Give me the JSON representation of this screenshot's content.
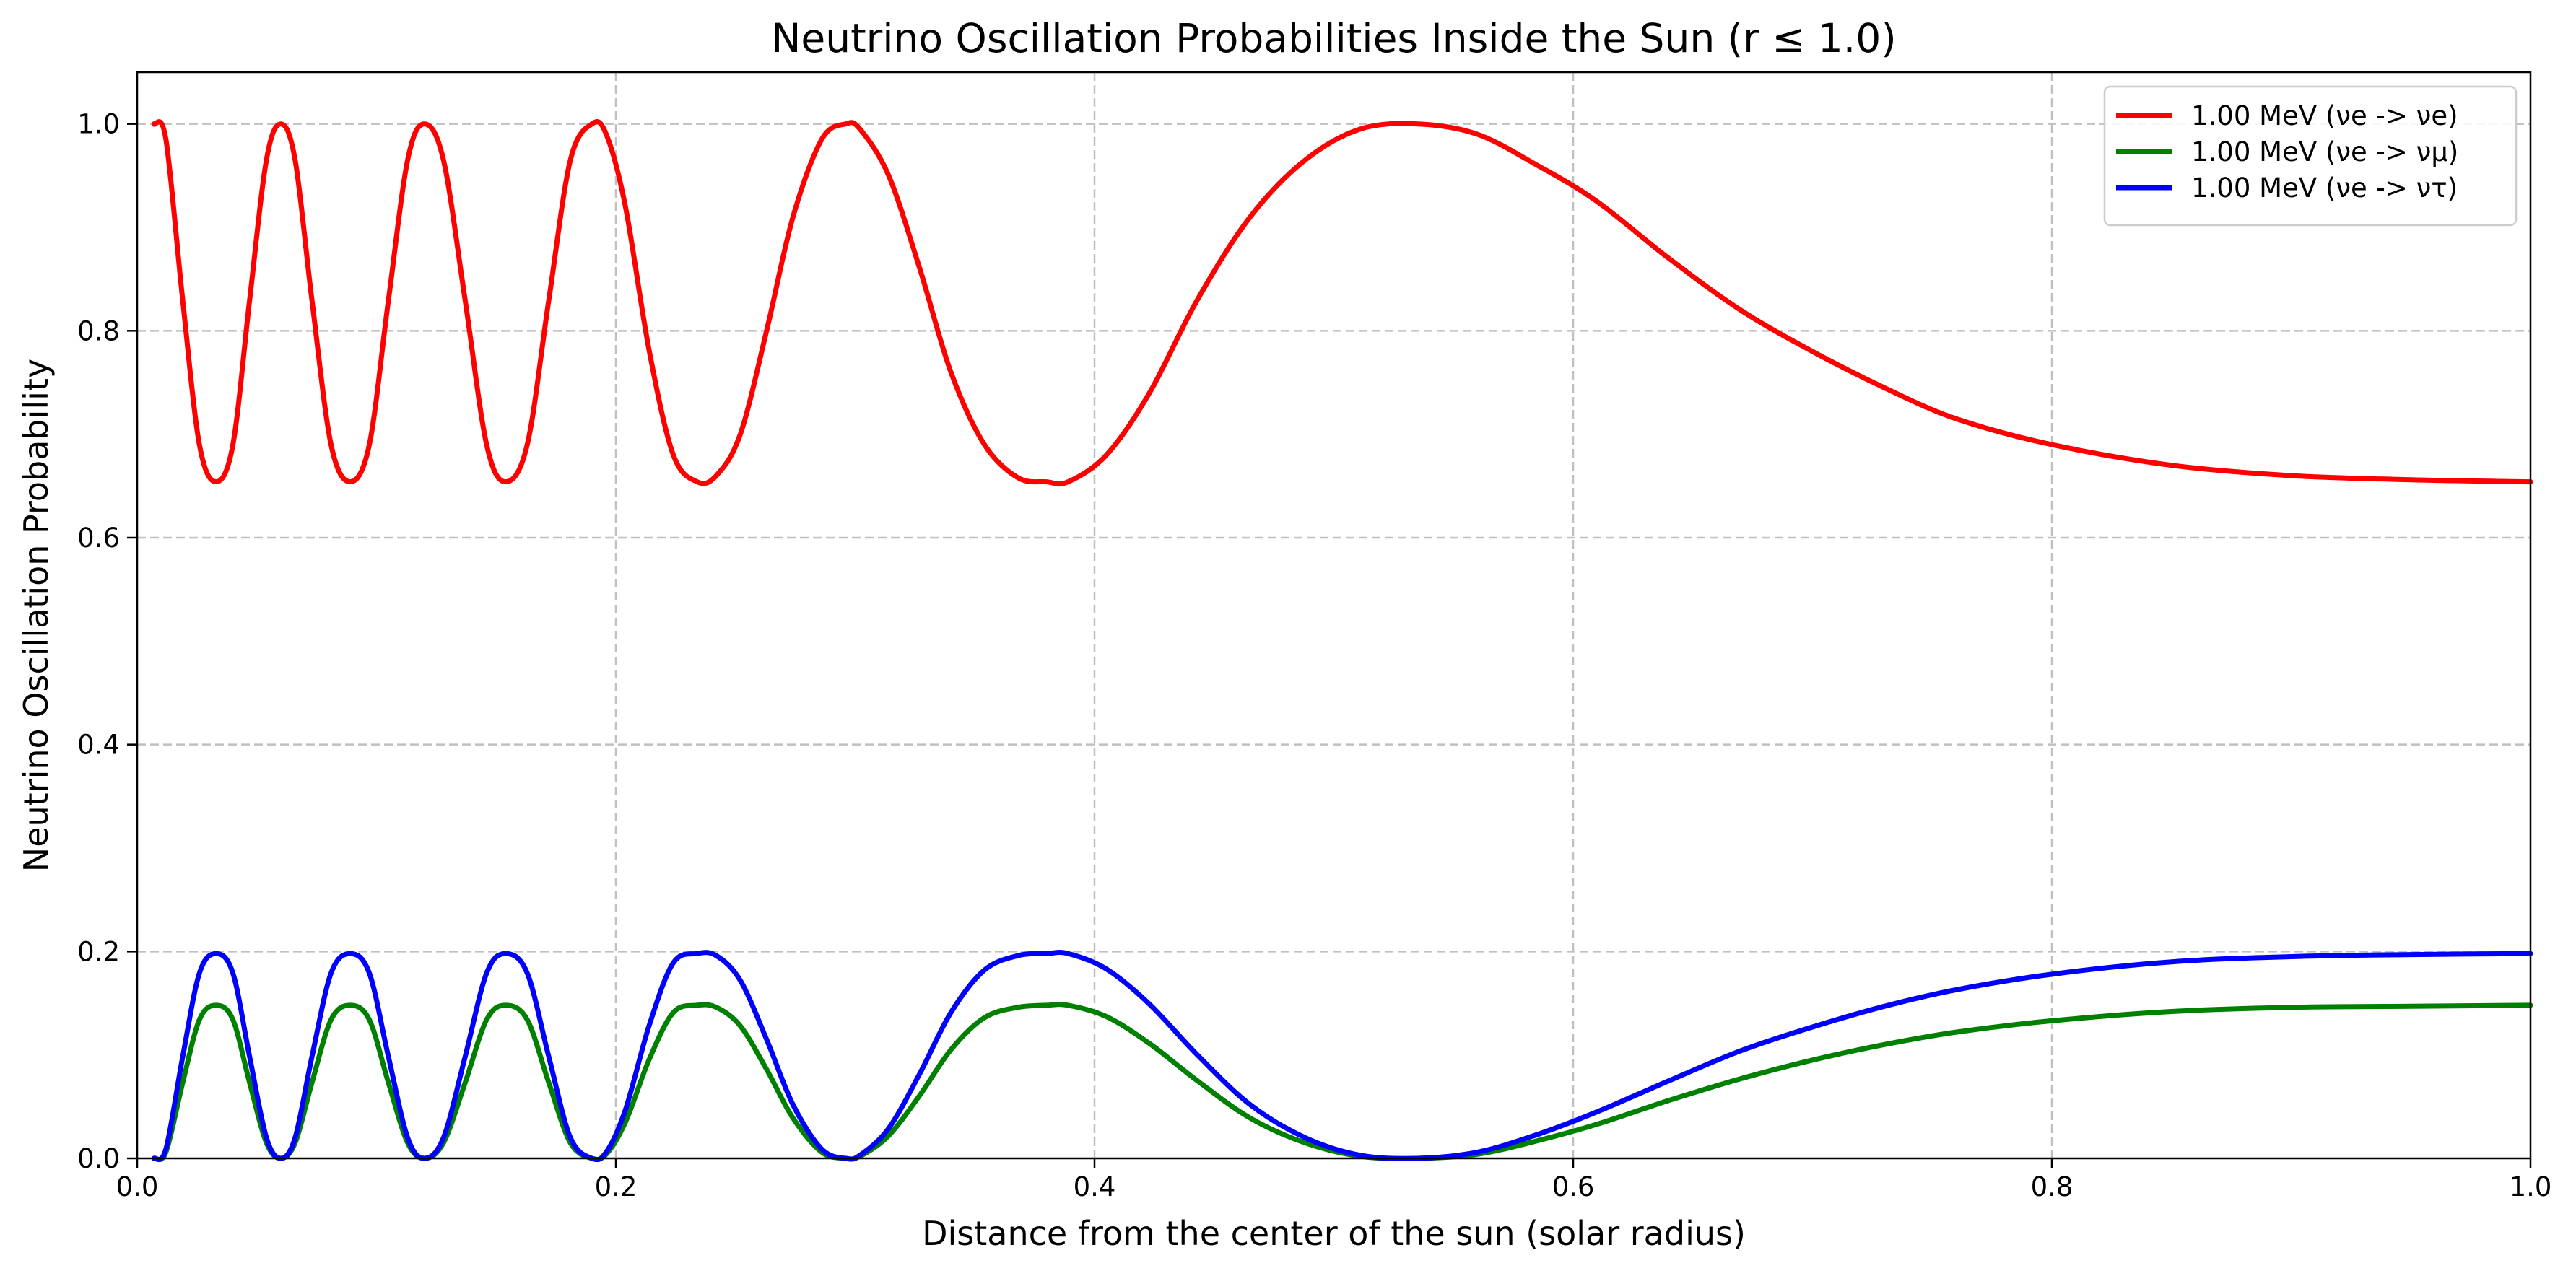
{
  "chart_data": {
    "type": "line",
    "title": "Neutrino Oscillation Probabilities Inside the Sun (r ≤ 1.0)",
    "xlabel": "Distance from the center of the sun (solar radius)",
    "ylabel": "Neutrino Oscillation Probability",
    "xlim": [
      0.0,
      1.0
    ],
    "ylim": [
      0.0,
      1.05
    ],
    "xticks": [
      0.0,
      0.2,
      0.4,
      0.6,
      0.8,
      1.0
    ],
    "xtick_labels": [
      "0.0",
      "0.2",
      "0.4",
      "0.6",
      "0.8",
      "1.0"
    ],
    "yticks": [
      0.0,
      0.2,
      0.4,
      0.6,
      0.8,
      1.0
    ],
    "ytick_labels": [
      "0.0",
      "0.2",
      "0.4",
      "0.6",
      "0.8",
      "1.0"
    ],
    "grid": true,
    "legend_position": "top-right",
    "series": [
      {
        "name": "1.00 MeV (νe -> νe)",
        "color": "#ff0000",
        "x": [
          0.007,
          0.012,
          0.019,
          0.026,
          0.033,
          0.04,
          0.047,
          0.054,
          0.06,
          0.066,
          0.073,
          0.081,
          0.089,
          0.097,
          0.105,
          0.113,
          0.12,
          0.128,
          0.137,
          0.146,
          0.154,
          0.163,
          0.172,
          0.181,
          0.19,
          0.196,
          0.204,
          0.214,
          0.224,
          0.234,
          0.242,
          0.252,
          0.263,
          0.274,
          0.286,
          0.296,
          0.302,
          0.314,
          0.327,
          0.34,
          0.354,
          0.368,
          0.38,
          0.389,
          0.405,
          0.423,
          0.443,
          0.465,
          0.488,
          0.511,
          0.535,
          0.56,
          0.585,
          0.61,
          0.64,
          0.67,
          0.7,
          0.73,
          0.76,
          0.8,
          0.85,
          0.9,
          0.95,
          1.0
        ],
        "y": [
          1.0,
          0.985,
          0.83,
          0.69,
          0.654,
          0.69,
          0.83,
          0.965,
          1.0,
          0.965,
          0.83,
          0.69,
          0.654,
          0.69,
          0.83,
          0.965,
          1.0,
          0.965,
          0.83,
          0.69,
          0.654,
          0.69,
          0.83,
          0.965,
          1.0,
          0.99,
          0.92,
          0.78,
          0.68,
          0.654,
          0.66,
          0.7,
          0.8,
          0.91,
          0.985,
          1.0,
          0.995,
          0.95,
          0.86,
          0.76,
          0.69,
          0.658,
          0.654,
          0.654,
          0.68,
          0.74,
          0.83,
          0.91,
          0.965,
          0.995,
          1.0,
          0.99,
          0.96,
          0.925,
          0.87,
          0.82,
          0.78,
          0.745,
          0.715,
          0.69,
          0.67,
          0.66,
          0.656,
          0.654
        ]
      },
      {
        "name": "1.00 MeV (νe -> νμ)",
        "color": "#008000",
        "x": [
          0.007,
          0.012,
          0.019,
          0.026,
          0.033,
          0.04,
          0.047,
          0.054,
          0.06,
          0.066,
          0.073,
          0.081,
          0.089,
          0.097,
          0.105,
          0.113,
          0.12,
          0.128,
          0.137,
          0.146,
          0.154,
          0.163,
          0.172,
          0.181,
          0.19,
          0.196,
          0.204,
          0.214,
          0.224,
          0.234,
          0.242,
          0.252,
          0.263,
          0.274,
          0.286,
          0.296,
          0.302,
          0.314,
          0.327,
          0.34,
          0.354,
          0.368,
          0.38,
          0.389,
          0.405,
          0.423,
          0.443,
          0.465,
          0.488,
          0.511,
          0.535,
          0.56,
          0.585,
          0.61,
          0.64,
          0.67,
          0.7,
          0.73,
          0.76,
          0.8,
          0.85,
          0.9,
          0.95,
          1.0
        ],
        "y": [
          0.0,
          0.006,
          0.073,
          0.134,
          0.148,
          0.134,
          0.073,
          0.015,
          0.0,
          0.015,
          0.073,
          0.134,
          0.148,
          0.134,
          0.073,
          0.015,
          0.0,
          0.015,
          0.073,
          0.134,
          0.148,
          0.134,
          0.073,
          0.015,
          0.0,
          0.004,
          0.035,
          0.096,
          0.141,
          0.148,
          0.146,
          0.128,
          0.086,
          0.039,
          0.006,
          0.0,
          0.002,
          0.022,
          0.061,
          0.105,
          0.136,
          0.146,
          0.148,
          0.148,
          0.137,
          0.111,
          0.075,
          0.039,
          0.015,
          0.002,
          0.0,
          0.004,
          0.017,
          0.033,
          0.056,
          0.077,
          0.095,
          0.11,
          0.122,
          0.133,
          0.142,
          0.146,
          0.147,
          0.148
        ]
      },
      {
        "name": "1.00 MeV (νe -> ντ)",
        "color": "#0000ff",
        "x": [
          0.007,
          0.012,
          0.019,
          0.026,
          0.033,
          0.04,
          0.047,
          0.054,
          0.06,
          0.066,
          0.073,
          0.081,
          0.089,
          0.097,
          0.105,
          0.113,
          0.12,
          0.128,
          0.137,
          0.146,
          0.154,
          0.163,
          0.172,
          0.181,
          0.19,
          0.196,
          0.204,
          0.214,
          0.224,
          0.234,
          0.242,
          0.252,
          0.263,
          0.274,
          0.286,
          0.296,
          0.302,
          0.314,
          0.327,
          0.34,
          0.354,
          0.368,
          0.38,
          0.389,
          0.405,
          0.423,
          0.443,
          0.465,
          0.488,
          0.511,
          0.535,
          0.56,
          0.585,
          0.61,
          0.64,
          0.67,
          0.7,
          0.73,
          0.76,
          0.8,
          0.85,
          0.9,
          0.95,
          1.0
        ],
        "y": [
          0.0,
          0.009,
          0.098,
          0.179,
          0.198,
          0.179,
          0.098,
          0.02,
          0.0,
          0.02,
          0.098,
          0.179,
          0.198,
          0.179,
          0.098,
          0.02,
          0.0,
          0.02,
          0.098,
          0.179,
          0.198,
          0.179,
          0.098,
          0.02,
          0.0,
          0.006,
          0.047,
          0.129,
          0.189,
          0.198,
          0.196,
          0.172,
          0.115,
          0.052,
          0.009,
          0.0,
          0.003,
          0.029,
          0.082,
          0.141,
          0.182,
          0.196,
          0.198,
          0.198,
          0.183,
          0.149,
          0.1,
          0.052,
          0.02,
          0.003,
          0.0,
          0.006,
          0.023,
          0.045,
          0.075,
          0.104,
          0.127,
          0.147,
          0.163,
          0.178,
          0.19,
          0.195,
          0.197,
          0.198
        ]
      }
    ]
  }
}
